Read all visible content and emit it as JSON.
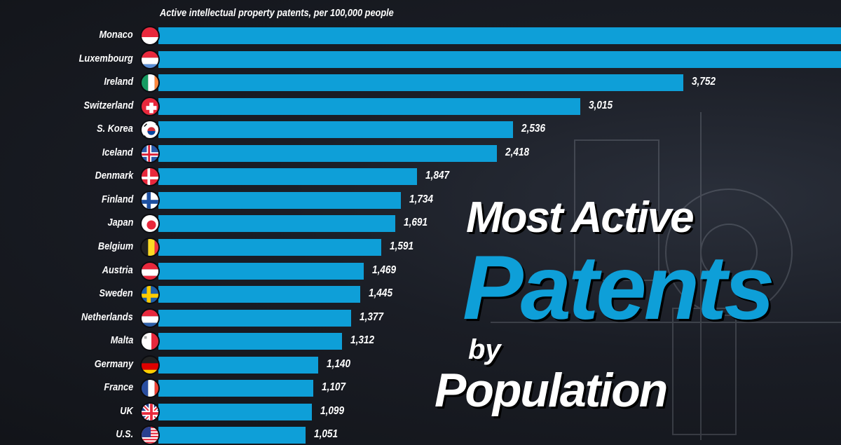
{
  "chart_data": {
    "type": "bar",
    "orientation": "horizontal",
    "title": "Most Active Patents by Population",
    "title_parts": [
      "Most Active",
      "Patents",
      "by",
      "Population"
    ],
    "subtitle": "Active intellectual property patents, per 100,000 people",
    "categories": [
      "Monaco",
      "Luxembourg",
      "Ireland",
      "Switzerland",
      "S. Korea",
      "Iceland",
      "Denmark",
      "Finland",
      "Japan",
      "Belgium",
      "Austria",
      "Sweden",
      "Netherlands",
      "Malta",
      "Germany",
      "France",
      "UK",
      "U.S."
    ],
    "values": [
      null,
      null,
      3752,
      3015,
      2536,
      2418,
      1847,
      1734,
      1691,
      1591,
      1469,
      1445,
      1377,
      1312,
      1140,
      1107,
      1099,
      1051
    ],
    "value_labels": [
      "",
      "",
      "3,752",
      "3,015",
      "2,536",
      "2,418",
      "1,847",
      "1,734",
      "1,691",
      "1,591",
      "1,469",
      "1,445",
      "1,377",
      "1,312",
      "1,140",
      "1,107",
      "1,099",
      "1,051"
    ],
    "flags": [
      [
        "#e8283c",
        "#ffffff"
      ],
      [
        "#e8283c",
        "#ffffff",
        "#5b8fd6"
      ],
      [
        "v",
        "#169b62",
        "#ffffff",
        "#ff883e"
      ],
      [
        "ch"
      ],
      [
        "kr"
      ],
      [
        "is"
      ],
      [
        "dk"
      ],
      [
        "fi"
      ],
      [
        "jp"
      ],
      [
        "v",
        "#222222",
        "#fdda24",
        "#ef3340"
      ],
      [
        "#e8283c",
        "#ffffff",
        "#e8283c"
      ],
      [
        "se"
      ],
      [
        "#e8283c",
        "#ffffff",
        "#2e5fa8"
      ],
      [
        "mt"
      ],
      [
        "#222222",
        "#dd0000",
        "#ffce00"
      ],
      [
        "v",
        "#2a4ea0",
        "#ffffff",
        "#ef4135"
      ],
      [
        "uk"
      ],
      [
        "us"
      ]
    ],
    "bar_color": "#0e9fd8",
    "xlim": [
      0,
      4870
    ]
  }
}
